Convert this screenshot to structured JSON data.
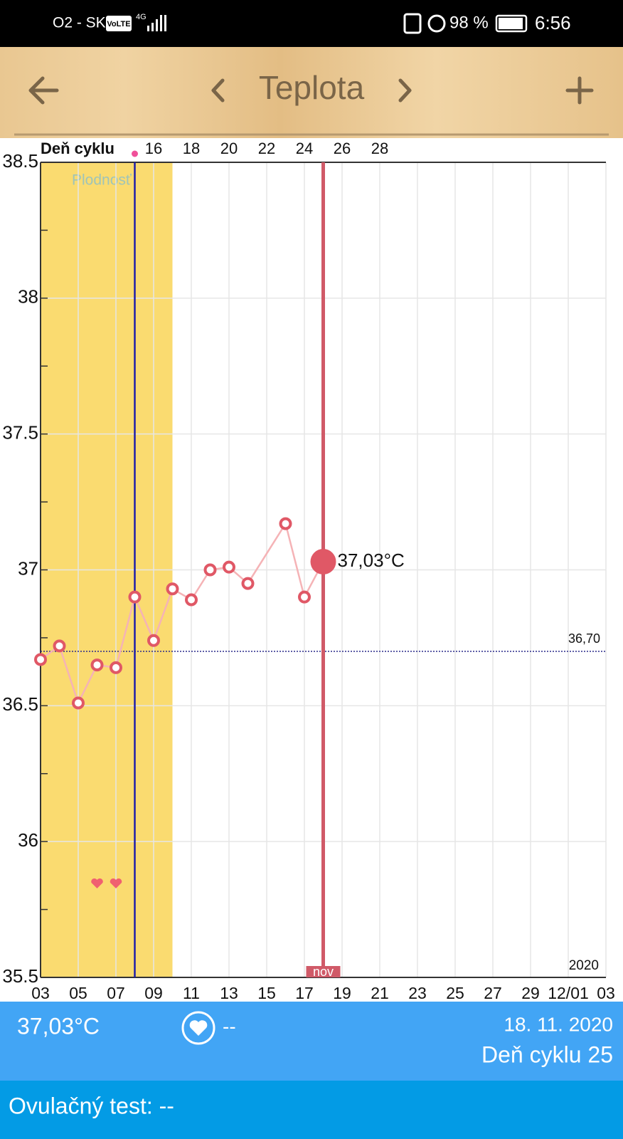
{
  "status_bar": {
    "carrier": "O2 - SK",
    "volte": "VoLTE",
    "network": "4G",
    "battery": "98 %",
    "time": "6:56"
  },
  "header": {
    "title": "Teplota"
  },
  "chart_data": {
    "type": "line",
    "top_axis_label": "Deň cyklu",
    "top_ticks": [
      {
        "value": 9,
        "label": "16"
      },
      {
        "value": 11,
        "label": "18"
      },
      {
        "value": 13,
        "label": "20"
      },
      {
        "value": 15,
        "label": "22"
      },
      {
        "value": 17,
        "label": "24"
      },
      {
        "value": 19,
        "label": "26"
      },
      {
        "value": 21,
        "label": "28"
      }
    ],
    "x": [
      3,
      4,
      5,
      6,
      7,
      8,
      9,
      10,
      11,
      12,
      13,
      14,
      16,
      17,
      18
    ],
    "values": [
      36.67,
      36.72,
      36.51,
      36.65,
      36.64,
      36.9,
      36.74,
      36.93,
      36.89,
      37.0,
      37.01,
      36.95,
      37.17,
      36.9,
      37.03
    ],
    "color": "#e05866",
    "line_color": "#f5b3b6",
    "xlim": [
      3,
      33
    ],
    "xticks": [
      {
        "value": 3,
        "label": "03"
      },
      {
        "value": 5,
        "label": "05"
      },
      {
        "value": 7,
        "label": "07"
      },
      {
        "value": 9,
        "label": "09"
      },
      11,
      13,
      15,
      17,
      19,
      21,
      23,
      25,
      27,
      29,
      {
        "value": 31,
        "label": "12/01"
      },
      {
        "value": 33,
        "label": "03"
      }
    ],
    "ylim": [
      35.5,
      38.5
    ],
    "yticks": [
      35.5,
      36,
      36.5,
      37,
      37.5,
      38,
      38.5
    ],
    "minor_yticks": [
      35.75,
      36.25,
      36.75,
      37.25,
      37.75,
      38.25
    ],
    "grid": true,
    "fertile_window": {
      "label": "Plodnosť",
      "x": [
        3,
        10
      ],
      "color": "#fadb70"
    },
    "ovulation_day": 8,
    "today": {
      "x": 18,
      "label": "nov",
      "temperature_label": "37,03°C"
    },
    "coverline": {
      "value": 36.7,
      "label": "36,70"
    },
    "year": "2020",
    "intercourse_days": [
      6,
      7
    ]
  },
  "footer": {
    "temperature": "37,03°C",
    "mucus": "--",
    "date": "18. 11. 2020",
    "cycle_day": "Deň cyklu 25",
    "ovulation_test": "Ovulačný test: --"
  }
}
